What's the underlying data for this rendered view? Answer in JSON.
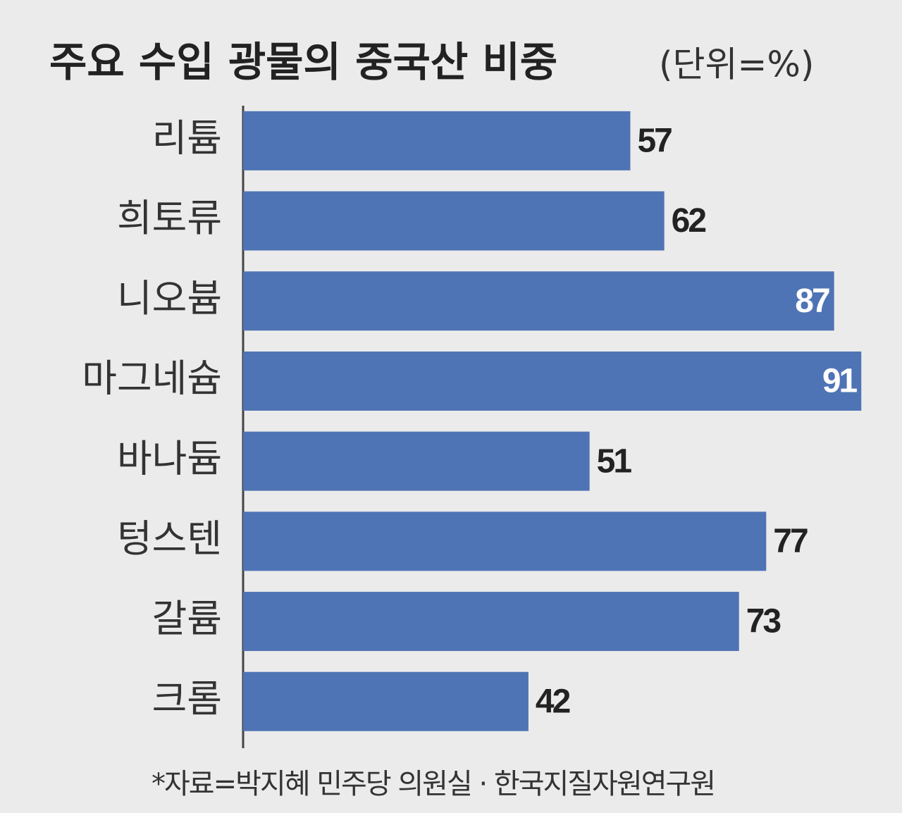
{
  "chart_data": {
    "type": "bar",
    "orientation": "horizontal",
    "title": "주요 수입 광물의 중국산 비중",
    "subtitle": "(단위=%)",
    "categories": [
      "리튬",
      "희토류",
      "니오븀",
      "마그네슘",
      "바나듐",
      "텅스텐",
      "갈륨",
      "크롬"
    ],
    "values": [
      57,
      62,
      87,
      91,
      51,
      77,
      73,
      42
    ],
    "color": "#4f74b5",
    "note": "*자료=박지혜 민주당 의원실 · 한국지질자원연구원"
  }
}
